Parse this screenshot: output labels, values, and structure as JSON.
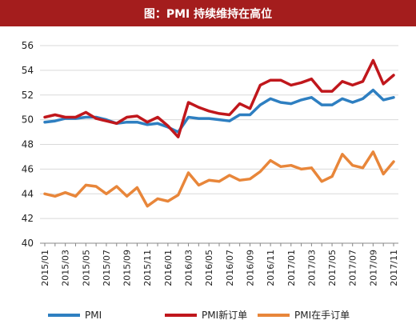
{
  "chart_data": {
    "type": "line",
    "title": "图：PMI 持续维持在高位",
    "ylim": [
      40,
      56
    ],
    "yticks": [
      40,
      42,
      44,
      46,
      48,
      50,
      52,
      54,
      56
    ],
    "x": [
      "2015/01",
      "2015/02",
      "2015/03",
      "2015/04",
      "2015/05",
      "2015/06",
      "2015/07",
      "2015/08",
      "2015/09",
      "2015/10",
      "2015/11",
      "2015/12",
      "2016/01",
      "2016/02",
      "2016/03",
      "2016/04",
      "2016/05",
      "2016/06",
      "2016/07",
      "2016/08",
      "2016/09",
      "2016/10",
      "2016/11",
      "2016/12",
      "2017/01",
      "2017/02",
      "2017/03",
      "2017/04",
      "2017/05",
      "2017/06",
      "2017/07",
      "2017/08",
      "2017/09",
      "2017/10",
      "2017/11"
    ],
    "xtick_labels": [
      "2015/01",
      "2015/03",
      "2015/05",
      "2015/07",
      "2015/09",
      "2015/11",
      "2016/01",
      "2016/03",
      "2016/05",
      "2016/07",
      "2016/09",
      "2016/11",
      "2017/01",
      "2017/03",
      "2017/05",
      "2017/07",
      "2017/09",
      "2017/11"
    ],
    "grid": "horizontal",
    "legend_position": "bottom",
    "series": [
      {
        "name": "PMI",
        "color": "#2e7fc1",
        "values": [
          49.8,
          49.9,
          50.1,
          50.1,
          50.2,
          50.2,
          50.0,
          49.7,
          49.8,
          49.8,
          49.6,
          49.7,
          49.4,
          49.0,
          50.2,
          50.1,
          50.1,
          50.0,
          49.9,
          50.4,
          50.4,
          51.2,
          51.7,
          51.4,
          51.3,
          51.6,
          51.8,
          51.2,
          51.2,
          51.7,
          51.4,
          51.7,
          52.4,
          51.6,
          51.8
        ]
      },
      {
        "name": "PMI新订单",
        "color": "#c0171c",
        "values": [
          50.2,
          50.4,
          50.2,
          50.2,
          50.6,
          50.1,
          49.9,
          49.7,
          50.2,
          50.3,
          49.8,
          50.2,
          49.5,
          48.6,
          51.4,
          51.0,
          50.7,
          50.5,
          50.4,
          51.3,
          50.9,
          52.8,
          53.2,
          53.2,
          52.8,
          53.0,
          53.3,
          52.3,
          52.3,
          53.1,
          52.8,
          53.1,
          54.8,
          52.9,
          53.6
        ]
      },
      {
        "name": "PMI在手订单",
        "color": "#e8863a",
        "values": [
          44.0,
          43.8,
          44.1,
          43.8,
          44.7,
          44.6,
          44.0,
          44.6,
          43.8,
          44.5,
          43.0,
          43.6,
          43.4,
          43.9,
          45.7,
          44.7,
          45.1,
          45.0,
          45.5,
          45.1,
          45.2,
          45.8,
          46.7,
          46.2,
          46.3,
          46.0,
          46.1,
          45.0,
          45.4,
          47.2,
          46.3,
          46.1,
          47.4,
          45.6,
          46.6
        ]
      }
    ]
  }
}
